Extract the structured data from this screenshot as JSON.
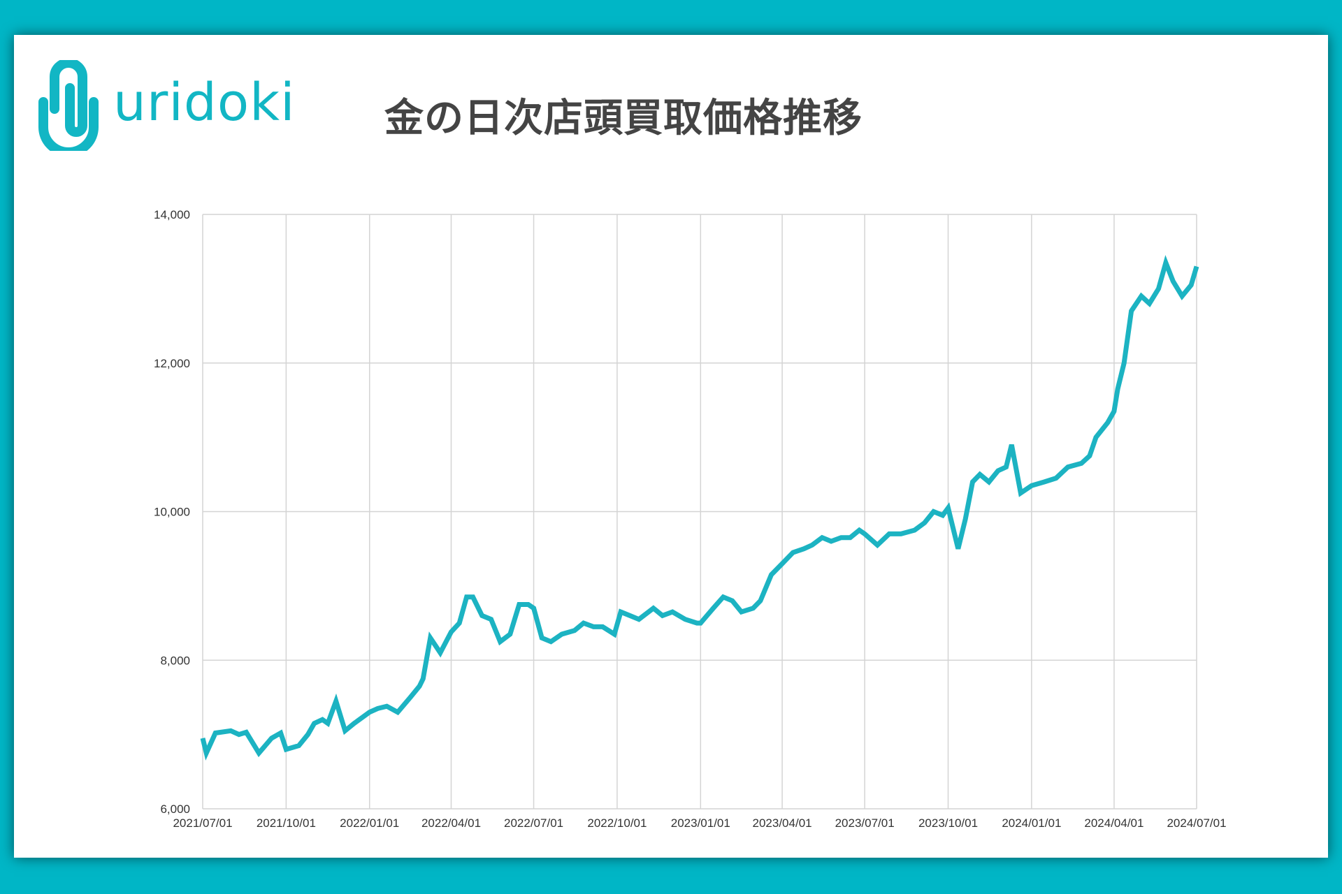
{
  "brand": {
    "logo_text": "uridoki",
    "accent_color": "#00b6c6",
    "line_color": "#1cb3c2"
  },
  "chart_data": {
    "type": "line",
    "title": "金の日次店頭買取価格推移",
    "xlabel": "",
    "ylabel": "",
    "ylim": [
      6000,
      14000
    ],
    "yticks": [
      6000,
      8000,
      10000,
      12000,
      14000
    ],
    "ytick_labels": [
      "6,000",
      "8,000",
      "10,000",
      "12,000",
      "14,000"
    ],
    "xlim": [
      "2021-07-01",
      "2024-07-01"
    ],
    "xtick_labels": [
      "2021/07/01",
      "2021/10/01",
      "2022/01/01",
      "2022/04/01",
      "2022/07/01",
      "2022/10/01",
      "2023/01/01",
      "2023/04/01",
      "2023/07/01",
      "2023/10/01",
      "2024/01/01",
      "2024/04/01",
      "2024/07/01"
    ],
    "grid": true,
    "legend": "none",
    "series": [
      {
        "x": [
          "2021-07-01",
          "2021-07-05",
          "2021-07-15",
          "2021-08-01",
          "2021-08-10",
          "2021-08-18",
          "2021-09-01",
          "2021-09-15",
          "2021-09-25",
          "2021-10-01",
          "2021-10-15",
          "2021-10-25",
          "2021-11-01",
          "2021-11-10",
          "2021-11-16",
          "2021-11-25",
          "2021-12-05",
          "2021-12-15",
          "2022-01-01",
          "2022-01-10",
          "2022-01-20",
          "2022-02-01",
          "2022-02-15",
          "2022-02-25",
          "2022-03-01",
          "2022-03-09",
          "2022-03-20",
          "2022-04-01",
          "2022-04-10",
          "2022-04-18",
          "2022-04-25",
          "2022-05-05",
          "2022-05-15",
          "2022-05-25",
          "2022-06-05",
          "2022-06-15",
          "2022-06-25",
          "2022-07-01",
          "2022-07-10",
          "2022-07-20",
          "2022-08-01",
          "2022-08-15",
          "2022-08-25",
          "2022-09-05",
          "2022-09-15",
          "2022-09-28",
          "2022-10-05",
          "2022-10-15",
          "2022-10-25",
          "2022-11-10",
          "2022-11-20",
          "2022-12-01",
          "2022-12-15",
          "2022-12-28",
          "2023-01-01",
          "2023-01-15",
          "2023-01-26",
          "2023-02-05",
          "2023-02-15",
          "2023-02-28",
          "2023-03-08",
          "2023-03-20",
          "2023-04-01",
          "2023-04-13",
          "2023-04-25",
          "2023-05-04",
          "2023-05-15",
          "2023-05-25",
          "2023-06-05",
          "2023-06-15",
          "2023-06-25",
          "2023-07-01",
          "2023-07-15",
          "2023-07-28",
          "2023-08-10",
          "2023-08-25",
          "2023-09-05",
          "2023-09-15",
          "2023-09-25",
          "2023-10-01",
          "2023-10-06",
          "2023-10-12",
          "2023-10-20",
          "2023-10-28",
          "2023-11-05",
          "2023-11-15",
          "2023-11-25",
          "2023-12-04",
          "2023-12-10",
          "2023-12-20",
          "2024-01-01",
          "2024-01-15",
          "2024-01-28",
          "2024-02-10",
          "2024-02-25",
          "2024-03-05",
          "2024-03-12",
          "2024-03-25",
          "2024-04-01",
          "2024-04-05",
          "2024-04-12",
          "2024-04-20",
          "2024-05-01",
          "2024-05-10",
          "2024-05-20",
          "2024-05-28",
          "2024-06-05",
          "2024-06-15",
          "2024-06-25",
          "2024-07-01"
        ],
        "values": [
          6950,
          6750,
          7020,
          7050,
          7000,
          7030,
          6750,
          6950,
          7020,
          6800,
          6850,
          7000,
          7150,
          7200,
          7150,
          7450,
          7050,
          7150,
          7300,
          7350,
          7380,
          7300,
          7500,
          7650,
          7750,
          8300,
          8100,
          8380,
          8500,
          8850,
          8850,
          8600,
          8550,
          8250,
          8350,
          8750,
          8750,
          8700,
          8300,
          8250,
          8350,
          8400,
          8500,
          8450,
          8450,
          8350,
          8650,
          8600,
          8550,
          8700,
          8600,
          8650,
          8550,
          8500,
          8500,
          8700,
          8850,
          8800,
          8650,
          8700,
          8800,
          9150,
          9300,
          9450,
          9500,
          9550,
          9650,
          9600,
          9650,
          9650,
          9750,
          9700,
          9550,
          9700,
          9700,
          9750,
          9850,
          10000,
          9950,
          10050,
          9800,
          9500,
          9900,
          10400,
          10500,
          10400,
          10550,
          10600,
          10900,
          10250,
          10350,
          10400,
          10450,
          10600,
          10650,
          10750,
          11000,
          11200,
          11350,
          11650,
          12000,
          12700,
          12900,
          12800,
          13000,
          13350,
          13100,
          12900,
          13050,
          13300
        ]
      }
    ]
  }
}
